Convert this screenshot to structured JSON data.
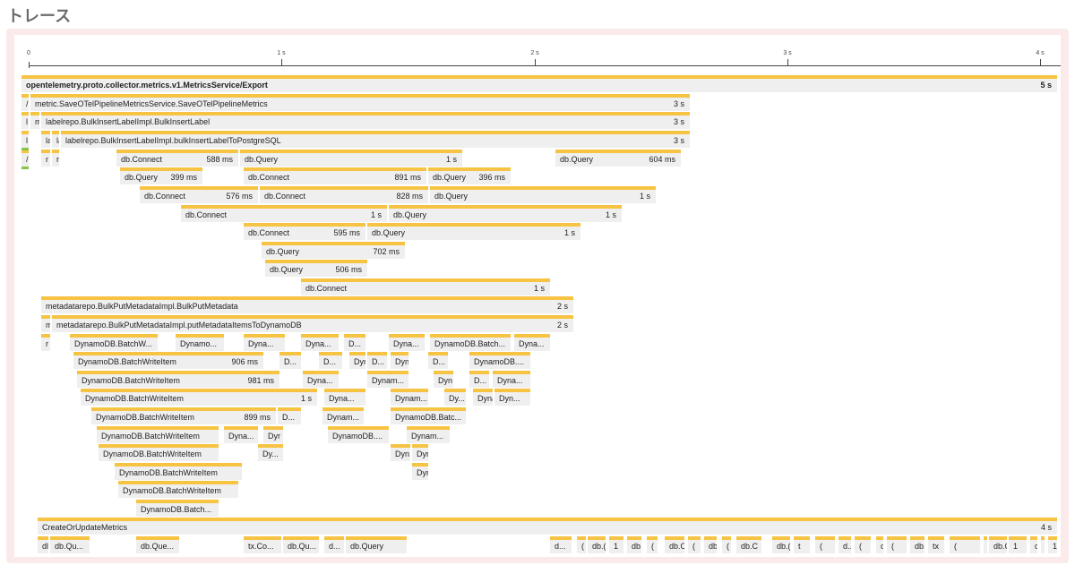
{
  "page": {
    "title": "トレース"
  },
  "axis": {
    "ticks": [
      "0",
      "1 s",
      "2 s",
      "3 s",
      "4 s"
    ]
  },
  "spans": [
    {
      "name": "opentelemetry.proto.collector.metrics.v1.MetricsService/Export",
      "duration": "5 s",
      "bold": true
    },
    {
      "name": "/",
      "duration": ""
    },
    {
      "name": "metric.SaveOTelPipelineMetricsService.SaveOTelPipelineMetrics",
      "duration": "3 s"
    },
    {
      "name": "l",
      "duration": ""
    },
    {
      "name": "m",
      "duration": ""
    },
    {
      "name": "labelrepo.BulkInsertLabelImpl.BulkInsertLabel",
      "duration": "3 s"
    },
    {
      "name": "l",
      "duration": ""
    },
    {
      "name": "la",
      "duration": ""
    },
    {
      "name": "la",
      "duration": ""
    },
    {
      "name": "labelrepo.BulkInsertLabelImpl.bulkInsertLabelToPostgreSQL",
      "duration": "3 s"
    },
    {
      "name": "/",
      "duration": ""
    },
    {
      "name": "r",
      "duration": ""
    },
    {
      "name": "r",
      "duration": ""
    },
    {
      "name": "db.Connect",
      "duration": "588 ms"
    },
    {
      "name": "db.Query",
      "duration": "1 s"
    },
    {
      "name": "db.Query",
      "duration": "604 ms"
    },
    {
      "name": "db.Query",
      "duration": "399 ms"
    },
    {
      "name": "db.Connect",
      "duration": "891 ms"
    },
    {
      "name": "db.Query",
      "duration": "396 ms"
    },
    {
      "name": "db.Connect",
      "duration": "576 ms"
    },
    {
      "name": "db.Connect",
      "duration": "828 ms"
    },
    {
      "name": "db.Query",
      "duration": "1 s"
    },
    {
      "name": "db.Connect",
      "duration": "1 s"
    },
    {
      "name": "db.Query",
      "duration": "1 s"
    },
    {
      "name": "db.Connect",
      "duration": "595 ms"
    },
    {
      "name": "db.Query",
      "duration": "1 s"
    },
    {
      "name": "db.Query",
      "duration": "702 ms"
    },
    {
      "name": "db.Query",
      "duration": "506 ms"
    },
    {
      "name": "db.Connect",
      "duration": "1 s"
    },
    {
      "name": "metadatarepo.BulkPutMetadataImpl.BulkPutMetadata",
      "duration": "2 s"
    },
    {
      "name": "m",
      "duration": ""
    },
    {
      "name": "metadatarepo.BulkPutMetadataImpl.putMetadataItemsToDynamoDB",
      "duration": "2 s"
    },
    {
      "name": "r",
      "duration": ""
    },
    {
      "name": "DynamoDB.BatchW...",
      "duration": ""
    },
    {
      "name": "Dynamo...",
      "duration": ""
    },
    {
      "name": "Dyna...",
      "duration": ""
    },
    {
      "name": "Dyna...",
      "duration": ""
    },
    {
      "name": "D...",
      "duration": ""
    },
    {
      "name": "Dyna...",
      "duration": ""
    },
    {
      "name": "DynamoDB.Batch...",
      "duration": ""
    },
    {
      "name": "Dyna...",
      "duration": ""
    },
    {
      "name": "DynamoDB.BatchWriteItem",
      "duration": "906 ms"
    },
    {
      "name": "D...",
      "duration": ""
    },
    {
      "name": "D...",
      "duration": ""
    },
    {
      "name": "Dyn",
      "duration": ""
    },
    {
      "name": "D...",
      "duration": ""
    },
    {
      "name": "Dyn",
      "duration": ""
    },
    {
      "name": "D...",
      "duration": ""
    },
    {
      "name": "DynamoDB....",
      "duration": ""
    },
    {
      "name": "DynamoDB.BatchWriteItem",
      "duration": "981 ms"
    },
    {
      "name": "Dyna...",
      "duration": ""
    },
    {
      "name": "Dynam...",
      "duration": ""
    },
    {
      "name": "Dyn",
      "duration": ""
    },
    {
      "name": "D...",
      "duration": ""
    },
    {
      "name": "Dyna...",
      "duration": ""
    },
    {
      "name": "DynamoDB.BatchWriteItem",
      "duration": "1 s"
    },
    {
      "name": "Dyna...",
      "duration": ""
    },
    {
      "name": "Dynam...",
      "duration": ""
    },
    {
      "name": "Dy...",
      "duration": ""
    },
    {
      "name": "Dyna",
      "duration": ""
    },
    {
      "name": "Dyn...",
      "duration": ""
    },
    {
      "name": "DynamoDB.BatchWriteItem",
      "duration": "899 ms"
    },
    {
      "name": "D...",
      "duration": ""
    },
    {
      "name": "Dynam...",
      "duration": ""
    },
    {
      "name": "DynamoDB.Batc...",
      "duration": ""
    },
    {
      "name": "DynamoDB.BatchWriteItem",
      "duration": ""
    },
    {
      "name": "Dyna...",
      "duration": ""
    },
    {
      "name": "Dyr",
      "duration": ""
    },
    {
      "name": "DynamoDB....",
      "duration": ""
    },
    {
      "name": "Dynam...",
      "duration": ""
    },
    {
      "name": "DynamoDB.BatchWriteItem",
      "duration": ""
    },
    {
      "name": "Dy...",
      "duration": ""
    },
    {
      "name": "Dyn",
      "duration": ""
    },
    {
      "name": "Dyr",
      "duration": ""
    },
    {
      "name": "DynamoDB.BatchWriteItem",
      "duration": ""
    },
    {
      "name": "Dyn",
      "duration": ""
    },
    {
      "name": "DynamoDB.BatchWriteItem",
      "duration": ""
    },
    {
      "name": "DynamoDB.Batch...",
      "duration": ""
    },
    {
      "name": "CreateOrUpdateMetrics",
      "duration": "4 s"
    },
    {
      "name": "dl",
      "duration": ""
    },
    {
      "name": "db.Qu...",
      "duration": ""
    },
    {
      "name": "db.Que...",
      "duration": ""
    },
    {
      "name": "tx.Co...",
      "duration": ""
    },
    {
      "name": "db.Qu...",
      "duration": ""
    },
    {
      "name": "d...",
      "duration": ""
    },
    {
      "name": "db.Query",
      "duration": ""
    },
    {
      "name": "d...",
      "duration": ""
    },
    {
      "name": "(",
      "duration": ""
    },
    {
      "name": "db.(",
      "duration": ""
    },
    {
      "name": "1",
      "duration": ""
    },
    {
      "name": "db.(",
      "duration": ""
    },
    {
      "name": "(",
      "duration": ""
    },
    {
      "name": "db.C",
      "duration": ""
    },
    {
      "name": "(",
      "duration": ""
    },
    {
      "name": "db.",
      "duration": ""
    },
    {
      "name": "(",
      "duration": ""
    },
    {
      "name": "db.C",
      "duration": ""
    },
    {
      "name": "db.(",
      "duration": ""
    },
    {
      "name": "t",
      "duration": ""
    },
    {
      "name": "(",
      "duration": ""
    },
    {
      "name": "d...",
      "duration": ""
    },
    {
      "name": "(",
      "duration": ""
    },
    {
      "name": "db.",
      "duration": ""
    },
    {
      "name": "(",
      "duration": ""
    },
    {
      "name": "db.(",
      "duration": ""
    },
    {
      "name": "tx",
      "duration": ""
    },
    {
      "name": "(",
      "duration": ""
    },
    {
      "name": "db",
      "duration": ""
    },
    {
      "name": "db.Q...",
      "duration": ""
    },
    {
      "name": "1",
      "duration": ""
    },
    {
      "name": "db",
      "duration": ""
    },
    {
      "name": "db.",
      "duration": ""
    },
    {
      "name": "1",
      "duration": ""
    },
    {
      "name": "(",
      "duration": ""
    },
    {
      "name": "d",
      "duration": ""
    }
  ]
}
